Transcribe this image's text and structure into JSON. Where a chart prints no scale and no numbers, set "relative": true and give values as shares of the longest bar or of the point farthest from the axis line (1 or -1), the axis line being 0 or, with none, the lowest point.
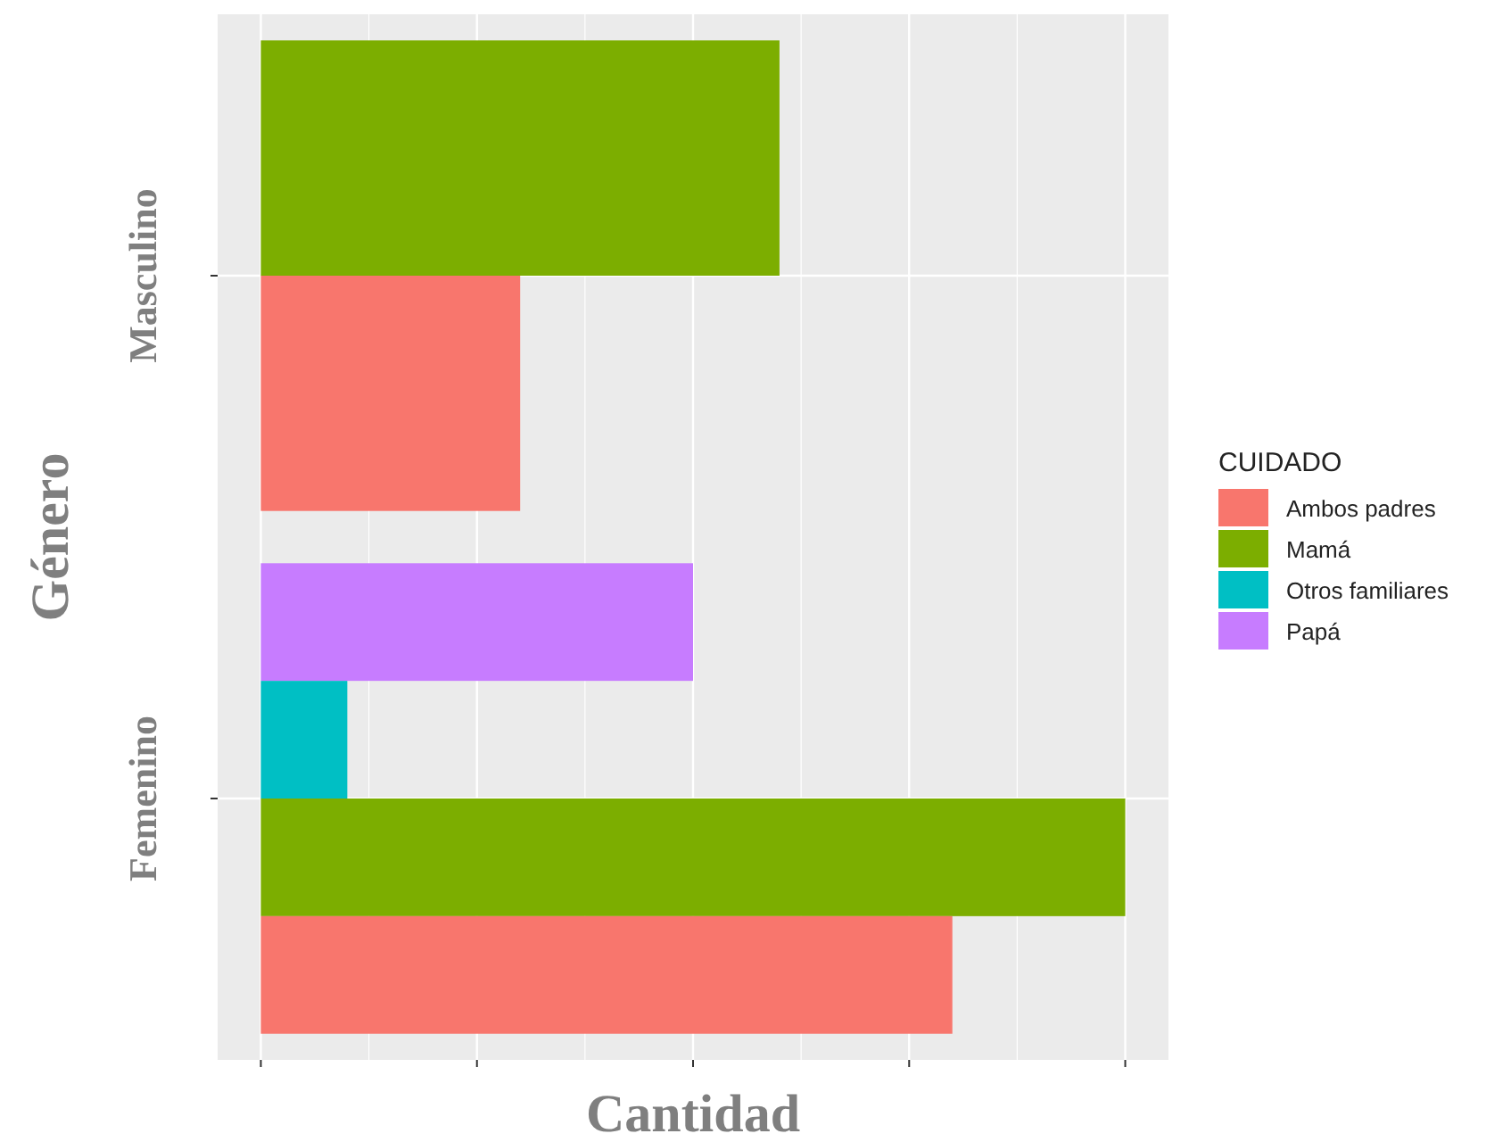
{
  "chart_data": {
    "type": "bar",
    "orientation": "horizontal",
    "relative": true,
    "xlabel": "Cantidad",
    "ylabel": "Género",
    "legend_title": "CUIDADO",
    "legend": "right",
    "grid": true,
    "tick_labels": "y",
    "categories": [
      "Masculino",
      "Femenino"
    ],
    "series": [
      {
        "name": "Ambos padres",
        "color": "#f8766d",
        "values": [
          0.3,
          0.8
        ]
      },
      {
        "name": "Mamá",
        "color": "#7cae00",
        "values": [
          0.6,
          1
        ]
      },
      {
        "name": "Otros familiares",
        "color": "#00bfc4",
        "values": [
          null,
          0.1
        ]
      },
      {
        "name": "Papá",
        "color": "#c77cff",
        "values": [
          null,
          0.5
        ]
      }
    ]
  }
}
